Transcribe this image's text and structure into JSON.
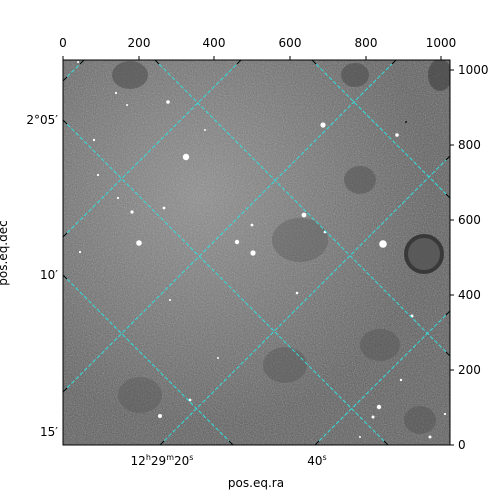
{
  "axes": {
    "xlabel": "pos.eq.ra",
    "ylabel": "pos.eq.dec",
    "top_ticks": [
      "0",
      "200",
      "400",
      "600",
      "800",
      "1000"
    ],
    "right_ticks": [
      "0",
      "200",
      "400",
      "600",
      "800",
      "1000"
    ],
    "left_ticks": [
      {
        "main": "2°05′"
      },
      {
        "main": "10′"
      },
      {
        "main": "15′"
      }
    ],
    "bottom_ticks": [
      {
        "h": "12",
        "hu": "h",
        "m": "29",
        "mu": "m",
        "s": "20",
        "su": "s"
      },
      {
        "s": "40",
        "su": "s"
      }
    ]
  },
  "colors": {
    "grid": "#33dddd",
    "frame": "#000000"
  }
}
